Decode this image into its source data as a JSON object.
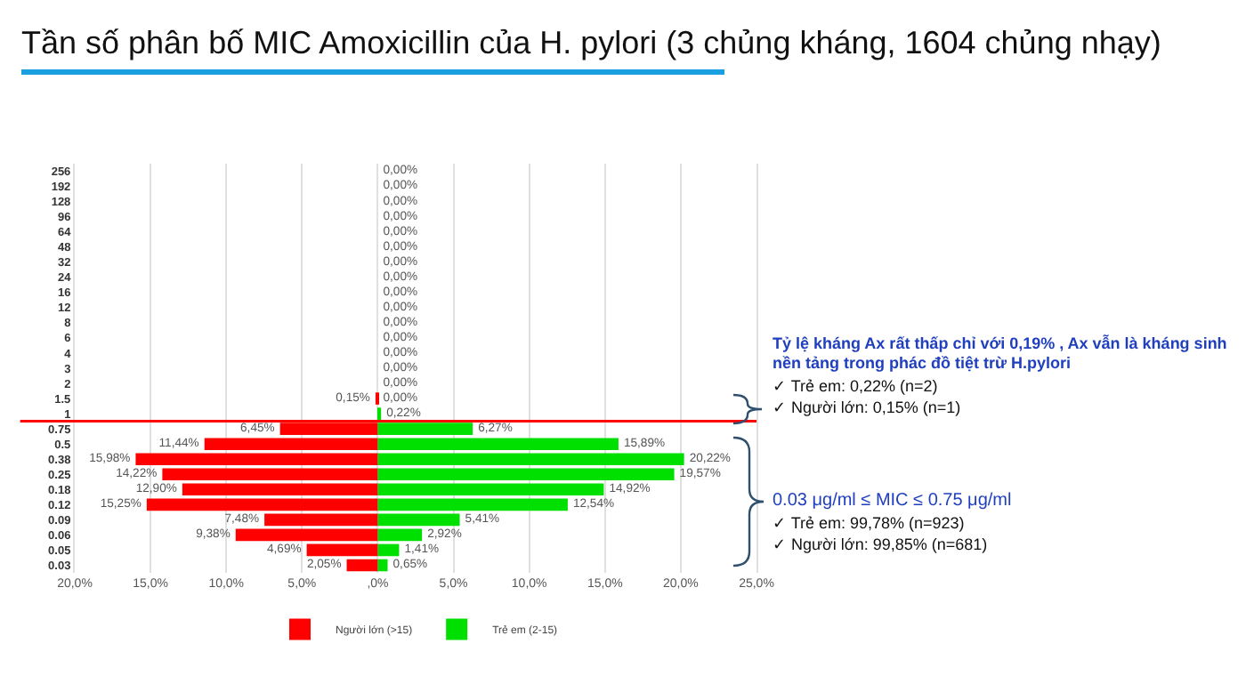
{
  "chart_data": {
    "type": "bar",
    "orientation": "horizontal",
    "title": "Tần số phân bố MIC Amoxicillin của H. pylori (3 chủng kháng, 1604 chủng nhạy)",
    "categories": [
      "256",
      "192",
      "128",
      "96",
      "64",
      "48",
      "32",
      "24",
      "16",
      "12",
      "8",
      "6",
      "4",
      "3",
      "2",
      "1.5",
      "1",
      "0.75",
      "0.5",
      "0.38",
      "0.25",
      "0.18",
      "0.12",
      "0.09",
      "0.06",
      "0.05",
      "0.03"
    ],
    "series": [
      {
        "name": "Người lớn (>15)",
        "color": "#ff0000",
        "axis": "x2",
        "values": [
          0,
          0,
          0,
          0,
          0,
          0,
          0,
          0,
          0,
          0,
          0,
          0,
          0,
          0,
          0,
          0.15,
          0,
          6.45,
          11.44,
          15.98,
          14.22,
          12.9,
          15.25,
          7.48,
          9.38,
          4.69,
          2.05
        ],
        "value_labels": [
          null,
          null,
          null,
          null,
          null,
          null,
          null,
          null,
          null,
          null,
          null,
          null,
          null,
          null,
          null,
          "0,15%",
          null,
          "6,45%",
          "11,44%",
          "15,98%",
          "14,22%",
          "12,90%",
          "15,25%",
          "7,48%",
          "9,38%",
          "4,69%",
          "2,05%"
        ]
      },
      {
        "name": "Trẻ em (2-15)",
        "color": "#00e000",
        "values": [
          0,
          0,
          0,
          0,
          0,
          0,
          0,
          0,
          0,
          0,
          0,
          0,
          0,
          0,
          0,
          0,
          0.22,
          6.27,
          15.89,
          20.22,
          19.57,
          14.92,
          12.54,
          5.41,
          2.92,
          1.41,
          0.65
        ],
        "value_labels": [
          "0,00%",
          "0,00%",
          "0,00%",
          "0,00%",
          "0,00%",
          "0,00%",
          "0,00%",
          "0,00%",
          "0,00%",
          "0,00%",
          "0,00%",
          "0,00%",
          "0,00%",
          "0,00%",
          "0,00%",
          "0,00%",
          "0,22%",
          "6,27%",
          "15,89%",
          "20,22%",
          "19,57%",
          "14,92%",
          "12,54%",
          "5,41%",
          "2,92%",
          "1,41%",
          "0,65%"
        ]
      }
    ],
    "x2lim": [
      20,
      -25
    ],
    "x2ticks": [
      {
        "value": 20,
        "label": "20,0%"
      },
      {
        "value": 15,
        "label": "15,0%"
      },
      {
        "value": 10,
        "label": "10,0%"
      },
      {
        "value": 5,
        "label": "5,0%"
      }
    ],
    "xlim": [
      -20,
      25
    ],
    "xticks": [
      {
        "value": 0,
        "label": ",0%"
      },
      {
        "value": 5,
        "label": "5,0%"
      },
      {
        "value": 10,
        "label": "10,0%"
      },
      {
        "value": 15,
        "label": "15,0%"
      },
      {
        "value": 20,
        "label": "20,0%"
      },
      {
        "value": 25,
        "label": "25,0%"
      }
    ],
    "grid": "x",
    "legend": "bottom",
    "ref_lines": [
      {
        "axis": "y",
        "value": "1",
        "color": "#ff0000"
      }
    ],
    "annotations": [
      "Tỷ lệ kháng Ax rất thấp chỉ với 0,19% , Ax vẫn là kháng sinh nền tảng trong phác đồ tiệt trừ H.pylori",
      "✓ Trẻ em: 0,22% (n=2)",
      "✓ Người lớn: 0,15% (n=1)",
      "0.03 μg/ml ≤ MIC ≤ 0.75 μg/ml",
      "✓ Trẻ em: 99,78% (n=923)",
      "✓ Người lớn: 99,85% (n=681)"
    ]
  }
}
